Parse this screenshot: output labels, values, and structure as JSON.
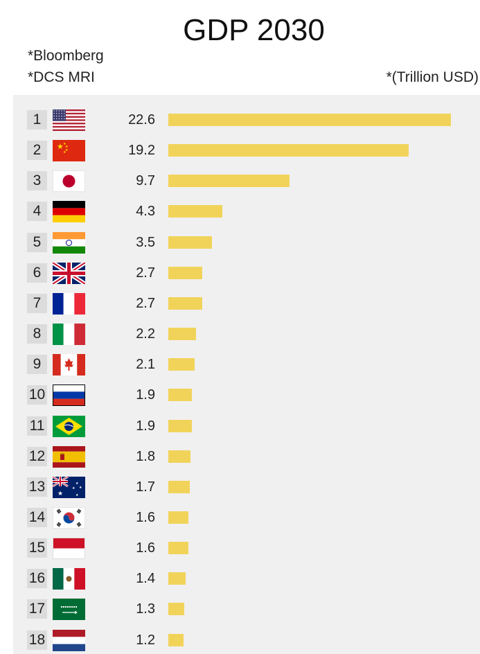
{
  "header": {
    "title": "GDP 2030",
    "source_1": "*Bloomberg",
    "source_2": "*DCS MRI",
    "unit": "*(Trillion USD)"
  },
  "colors": {
    "bar": "#f1d35a",
    "panel": "#f0f0f0",
    "rank_box": "#dcdcdc"
  },
  "chart_data": {
    "type": "bar",
    "orientation": "horizontal",
    "title": "GDP 2030",
    "unit_note": "*(Trillion USD)",
    "xlim": [
      0,
      22.6
    ],
    "grid": false,
    "legend": "none",
    "ranks": [
      "1",
      "2",
      "3",
      "4",
      "5",
      "6",
      "7",
      "8",
      "9",
      "10",
      "11",
      "12",
      "13",
      "14",
      "15",
      "16",
      "17",
      "18"
    ],
    "flags": [
      "us-flag-icon",
      "china-flag-icon",
      "japan-flag-icon",
      "germany-flag-icon",
      "india-flag-icon",
      "uk-flag-icon",
      "france-flag-icon",
      "italy-flag-icon",
      "canada-flag-icon",
      "russia-flag-icon",
      "brazil-flag-icon",
      "spain-flag-icon",
      "australia-flag-icon",
      "south-korea-flag-icon",
      "indonesia-flag-icon",
      "mexico-flag-icon",
      "saudi-arabia-flag-icon",
      "netherlands-flag-icon"
    ],
    "value_labels": [
      "22.6",
      "19.2",
      "9.7",
      "4.3",
      "3.5",
      "2.7",
      "2.7",
      "2.2",
      "2.1",
      "1.9",
      "1.9",
      "1.8",
      "1.7",
      "1.6",
      "1.6",
      "1.4",
      "1.3",
      "1.2"
    ],
    "values": [
      22.6,
      19.2,
      9.7,
      4.3,
      3.5,
      2.7,
      2.7,
      2.2,
      2.1,
      1.9,
      1.9,
      1.8,
      1.7,
      1.6,
      1.6,
      1.4,
      1.3,
      1.2
    ]
  }
}
